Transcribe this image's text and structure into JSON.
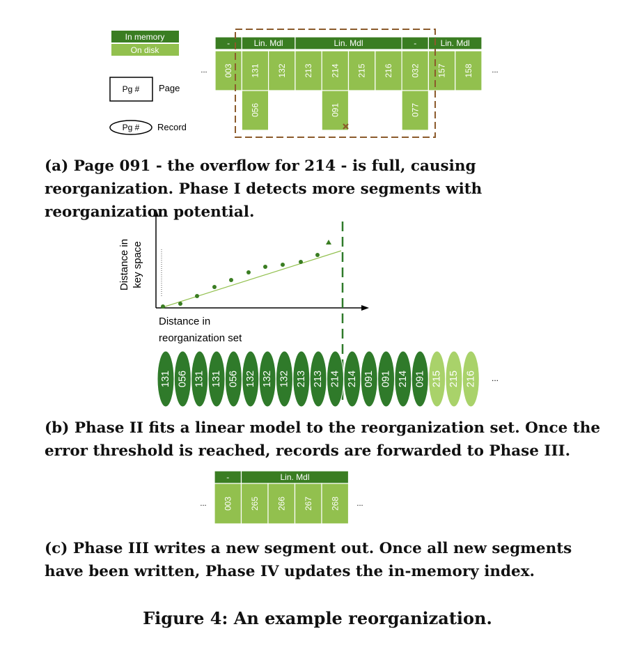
{
  "legend": {
    "in_memory": "In memory",
    "on_disk": "On disk",
    "page_box": "Pg #",
    "page_label": "Page",
    "record_box": "Pg #",
    "record_label": "Record"
  },
  "panel_a": {
    "headers": [
      {
        "label": "-",
        "span": 1
      },
      {
        "label": "Lin. Mdl",
        "span": 2
      },
      {
        "label": "Lin. Mdl",
        "span": 4
      },
      {
        "label": "-",
        "span": 1
      },
      {
        "label": "Lin. Mdl",
        "span": 2
      }
    ],
    "pages": [
      "003",
      "131",
      "132",
      "213",
      "214",
      "215",
      "216",
      "032",
      "157",
      "158"
    ],
    "overflow": [
      {
        "under": 1,
        "label": "056"
      },
      {
        "under": 4,
        "label": "091"
      },
      {
        "under": 7,
        "label": "077"
      }
    ],
    "ellipsis_left": "...",
    "ellipsis_right": "...",
    "caption": "(a) Page 091 - the overflow for 214 - is full, causing reorganization. Phase I detects more segments with reorganization potential."
  },
  "panel_b": {
    "ylabel_line1": "Distance in",
    "ylabel_line2": "key space",
    "xlabel_line1": "Distance in",
    "xlabel_line2": "reorganization set",
    "records": [
      {
        "label": "131",
        "light": false
      },
      {
        "label": "056",
        "light": false
      },
      {
        "label": "131",
        "light": false
      },
      {
        "label": "131",
        "light": false
      },
      {
        "label": "056",
        "light": false
      },
      {
        "label": "132",
        "light": false
      },
      {
        "label": "132",
        "light": false
      },
      {
        "label": "132",
        "light": false
      },
      {
        "label": "213",
        "light": false
      },
      {
        "label": "213",
        "light": false
      },
      {
        "label": "214",
        "light": false
      },
      {
        "label": "214",
        "light": false
      },
      {
        "label": "091",
        "light": false
      },
      {
        "label": "091",
        "light": false
      },
      {
        "label": "214",
        "light": false
      },
      {
        "label": "091",
        "light": false
      },
      {
        "label": "215",
        "light": true
      },
      {
        "label": "215",
        "light": true
      },
      {
        "label": "216",
        "light": true
      }
    ],
    "ellipsis": "...",
    "caption": "(b) Phase II fits a linear model to the reorganization set. Once the error threshold is reached, records are forwarded to Phase III."
  },
  "panel_c": {
    "headers": [
      {
        "label": "-",
        "span": 1
      },
      {
        "label": "Lin. Mdl",
        "span": 4
      }
    ],
    "pages": [
      "003",
      "265",
      "266",
      "267",
      "268"
    ],
    "ellipsis_left": "...",
    "ellipsis_right": "...",
    "caption": "(c) Phase III writes a new segment out. Once all new segments have been written, Phase IV updates the in-memory index."
  },
  "figure_caption": "Figure 4: An example reorganization.",
  "colors": {
    "dark_green": "#3a7d22",
    "light_green": "#92c04e",
    "pale_green": "#a9d26a",
    "dashed_brown": "#8b5a2b",
    "axis": "#000000"
  }
}
